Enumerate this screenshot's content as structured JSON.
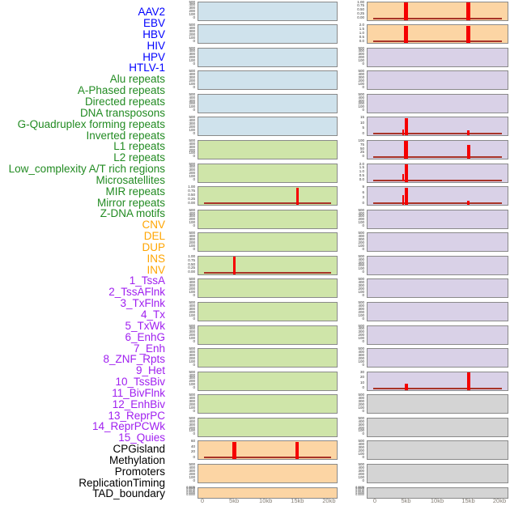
{
  "chart_data": {
    "type": "bar",
    "title": "",
    "description": "Genomic feature profile figure: 44 labeled rows, two columns of mini bar-track panels over a 0-20kb window; red spikes occur at ~5kb and ~15kb in a subset of panels.",
    "x_ticks": [
      {
        "kb": 0,
        "label": "0"
      },
      {
        "kb": 5,
        "label": "5kb"
      },
      {
        "kb": 10,
        "label": "10kb"
      },
      {
        "kb": 15,
        "label": "15kb"
      },
      {
        "kb": 20,
        "label": "20kb"
      }
    ],
    "label_colors": {
      "virus": "#0000FF",
      "repeat": "#228B22",
      "sv": "#FFA500",
      "chromhmm": "#A020F0",
      "other": "#000000"
    },
    "panel_colors": {
      "blue": "#CFE2EC",
      "green": "#CFE5A9",
      "orange": "#FCD5A4",
      "purple": "#D9D1E7",
      "gray": "#D4D4D4"
    },
    "border_color": "#8a8a8a",
    "spike_color": "#F50000",
    "baseline_color": "#A83428",
    "default_yticks": [
      "500",
      "400",
      "300",
      "200",
      "100",
      "0"
    ],
    "dense_yticks": [
      "0.0025",
      "0.0020",
      "0.0015",
      "0.0010",
      "0.0005",
      "0.0000"
    ],
    "rows": [
      {
        "text": "AAV2",
        "group": "virus"
      },
      {
        "text": "EBV",
        "group": "virus"
      },
      {
        "text": "HBV",
        "group": "virus"
      },
      {
        "text": "HIV",
        "group": "virus"
      },
      {
        "text": "HPV",
        "group": "virus"
      },
      {
        "text": "HTLV-1",
        "group": "virus"
      },
      {
        "text": "Alu repeats",
        "group": "repeat"
      },
      {
        "text": "A-Phased repeats",
        "group": "repeat"
      },
      {
        "text": "Directed repeats",
        "group": "repeat"
      },
      {
        "text": "DNA transposons",
        "group": "repeat"
      },
      {
        "text": "G-Quadruplex forming repeats",
        "group": "repeat"
      },
      {
        "text": "Inverted repeats",
        "group": "repeat"
      },
      {
        "text": "L1 repeats",
        "group": "repeat"
      },
      {
        "text": "L2 repeats",
        "group": "repeat"
      },
      {
        "text": "Low_complexity A/T rich regions",
        "group": "repeat"
      },
      {
        "text": "Microsatellites",
        "group": "repeat"
      },
      {
        "text": "MIR repeats",
        "group": "repeat"
      },
      {
        "text": "Mirror repeats",
        "group": "repeat"
      },
      {
        "text": "Z-DNA motifs",
        "group": "repeat"
      },
      {
        "text": "CNV",
        "group": "sv"
      },
      {
        "text": "DEL",
        "group": "sv"
      },
      {
        "text": "DUP",
        "group": "sv"
      },
      {
        "text": "INS",
        "group": "sv"
      },
      {
        "text": "INV",
        "group": "sv"
      },
      {
        "text": "1_TssA",
        "group": "chromhmm"
      },
      {
        "text": "2_TssAFlnk",
        "group": "chromhmm"
      },
      {
        "text": "3_TxFlnk",
        "group": "chromhmm"
      },
      {
        "text": "4_Tx",
        "group": "chromhmm"
      },
      {
        "text": "5_TxWk",
        "group": "chromhmm"
      },
      {
        "text": "6_EnhG",
        "group": "chromhmm"
      },
      {
        "text": "7_Enh",
        "group": "chromhmm"
      },
      {
        "text": "8_ZNF_Rpts",
        "group": "chromhmm"
      },
      {
        "text": "9_Het",
        "group": "chromhmm"
      },
      {
        "text": "10_TssBiv",
        "group": "chromhmm"
      },
      {
        "text": "11_BivFlnk",
        "group": "chromhmm"
      },
      {
        "text": "12_EnhBiv",
        "group": "chromhmm"
      },
      {
        "text": "13_ReprPC",
        "group": "chromhmm"
      },
      {
        "text": "14_ReprPCWk",
        "group": "chromhmm"
      },
      {
        "text": "15_Quies",
        "group": "chromhmm"
      },
      {
        "text": "CPGisland",
        "group": "other"
      },
      {
        "text": "Methylation",
        "group": "other"
      },
      {
        "text": "Promoters",
        "group": "other"
      },
      {
        "text": "ReplicationTiming",
        "group": "other"
      },
      {
        "text": "TAD_boundary",
        "group": "other"
      }
    ],
    "columns": [
      {
        "id": "left",
        "panels": [
          {
            "bg": "blue"
          },
          {
            "bg": "blue"
          },
          {
            "bg": "blue"
          },
          {
            "bg": "blue"
          },
          {
            "bg": "blue"
          },
          {
            "bg": "blue"
          },
          {
            "bg": "green"
          },
          {
            "bg": "green"
          },
          {
            "bg": "green",
            "yticks": [
              "1.00",
              "0.75",
              "0.50",
              "0.25",
              "0.00"
            ],
            "baseline": true,
            "bars": [
              {
                "kb": 15,
                "value": 1.0,
                "frac": 1,
                "w": 3
              }
            ]
          },
          {
            "bg": "green"
          },
          {
            "bg": "green"
          },
          {
            "bg": "green",
            "yticks": [
              "1.00",
              "0.75",
              "0.50",
              "0.25",
              "0.00"
            ],
            "baseline": true,
            "bars": [
              {
                "kb": 5,
                "value": 1.0,
                "frac": 1,
                "w": 3
              }
            ]
          },
          {
            "bg": "green"
          },
          {
            "bg": "green"
          },
          {
            "bg": "green"
          },
          {
            "bg": "green"
          },
          {
            "bg": "green"
          },
          {
            "bg": "green"
          },
          {
            "bg": "green"
          },
          {
            "bg": "orange",
            "yticks": [
              "60",
              "40",
              "20",
              "0"
            ],
            "baseline": true,
            "bars": [
              {
                "kb": 5,
                "value": 70,
                "frac": 1,
                "w": 5
              },
              {
                "kb": 15,
                "value": 70,
                "frac": 1,
                "w": 4
              }
            ]
          },
          {
            "bg": "orange"
          },
          {
            "bg": "orange",
            "dense": true
          }
        ]
      },
      {
        "id": "right",
        "panels": [
          {
            "bg": "orange",
            "yticks": [
              "1.00",
              "0.75",
              "0.50",
              "0.25",
              "0.00"
            ],
            "baseline": true,
            "bars": [
              {
                "kb": 5,
                "value": 1.0,
                "frac": 1,
                "w": 5
              },
              {
                "kb": 15,
                "value": 1.0,
                "frac": 1,
                "w": 5
              }
            ]
          },
          {
            "bg": "orange",
            "yticks": [
              "2.0",
              "1.5",
              "1.0",
              "0.5",
              "0.0"
            ],
            "baseline": true,
            "bars": [
              {
                "kb": 5,
                "value": 2.2,
                "frac": 1,
                "w": 5
              },
              {
                "kb": 15,
                "value": 2.2,
                "frac": 1,
                "w": 5
              }
            ]
          },
          {
            "bg": "purple"
          },
          {
            "bg": "purple"
          },
          {
            "bg": "purple"
          },
          {
            "bg": "purple",
            "yticks": [
              "15",
              "10",
              "5",
              "0"
            ],
            "baseline": true,
            "bars": [
              {
                "kb": 4.55,
                "value": 5,
                "frac": 0.33,
                "w": 2
              },
              {
                "kb": 5,
                "value": 16,
                "frac": 1,
                "w": 4
              },
              {
                "kb": 15,
                "value": 5,
                "frac": 0.3,
                "w": 3
              }
            ]
          },
          {
            "bg": "purple",
            "yticks": [
              "100",
              "75",
              "50",
              "25",
              "0"
            ],
            "baseline": true,
            "bars": [
              {
                "kb": 5,
                "value": 105,
                "frac": 1,
                "w": 5
              },
              {
                "kb": 15,
                "value": 82,
                "frac": 0.78,
                "w": 4
              }
            ]
          },
          {
            "bg": "purple",
            "yticks": [
              "2.0",
              "1.5",
              "1.0",
              "0.5",
              "0.0"
            ],
            "baseline": true,
            "bars": [
              {
                "kb": 4.55,
                "value": 1.0,
                "frac": 0.45,
                "w": 2
              },
              {
                "kb": 5,
                "value": 2.2,
                "frac": 1,
                "w": 4
              }
            ]
          },
          {
            "bg": "purple",
            "yticks": [
              "9",
              "6",
              "3",
              "0"
            ],
            "baseline": true,
            "bars": [
              {
                "kb": 4.55,
                "value": 5,
                "frac": 0.55,
                "w": 2
              },
              {
                "kb": 5,
                "value": 10,
                "frac": 1,
                "w": 4
              },
              {
                "kb": 15,
                "value": 2,
                "frac": 0.22,
                "w": 3
              }
            ]
          },
          {
            "bg": "purple"
          },
          {
            "bg": "purple"
          },
          {
            "bg": "purple"
          },
          {
            "bg": "purple"
          },
          {
            "bg": "purple"
          },
          {
            "bg": "purple"
          },
          {
            "bg": "purple"
          },
          {
            "bg": "purple",
            "yticks": [
              "30",
              "20",
              "10",
              "0"
            ],
            "baseline": true,
            "bars": [
              {
                "kb": 5,
                "value": 13,
                "frac": 0.38,
                "w": 4
              },
              {
                "kb": 15,
                "value": 35,
                "frac": 1,
                "w": 4
              }
            ]
          },
          {
            "bg": "gray"
          },
          {
            "bg": "gray"
          },
          {
            "bg": "gray"
          },
          {
            "bg": "gray"
          },
          {
            "bg": "gray",
            "dense": true
          }
        ]
      }
    ]
  }
}
